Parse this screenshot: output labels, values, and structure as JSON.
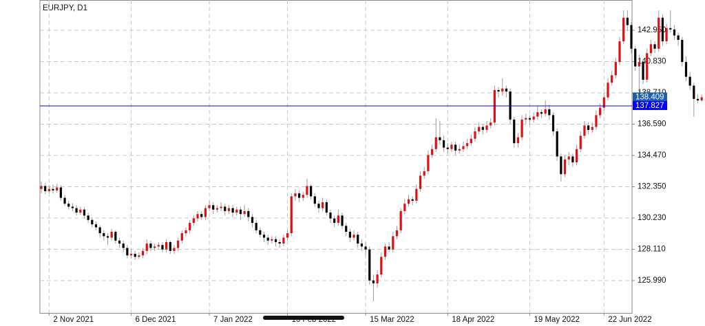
{
  "chart_data": {
    "type": "candlestick",
    "title": "EURJPY, D1",
    "categories": [
      null,
      null,
      "2 Nov 2021",
      null,
      null,
      null,
      null,
      null,
      null,
      null,
      null,
      null,
      null,
      null,
      null,
      null,
      null,
      null,
      null,
      null,
      null,
      null,
      null,
      "6 Dec 2021",
      null,
      null,
      null,
      null,
      null,
      null,
      null,
      null,
      null,
      null,
      null,
      null,
      null,
      null,
      null,
      null,
      null,
      null,
      null,
      "7 Jan 2022",
      null,
      null,
      null,
      null,
      null,
      null,
      null,
      null,
      null,
      null,
      null,
      null,
      null,
      null,
      null,
      null,
      null,
      null,
      null,
      "10 Feb 2022",
      null,
      null,
      null,
      null,
      null,
      null,
      null,
      null,
      null,
      null,
      null,
      null,
      null,
      null,
      null,
      null,
      null,
      null,
      null,
      "15 Mar 2022",
      null,
      null,
      null,
      null,
      null,
      null,
      null,
      null,
      null,
      null,
      null,
      null,
      null,
      null,
      null,
      null,
      null,
      null,
      null,
      null,
      "18 Apr 2022",
      null,
      null,
      null,
      null,
      null,
      null,
      null,
      null,
      null,
      null,
      null,
      null,
      null,
      null,
      null,
      null,
      null,
      null,
      null,
      null,
      "19 May 2022",
      null,
      null,
      null,
      null,
      null,
      null,
      null,
      null,
      null,
      null,
      null,
      null,
      null,
      null,
      null,
      null,
      null,
      null,
      "22 Jun 2022",
      null,
      null,
      null,
      null
    ],
    "ohlc": [
      [
        132.2,
        132.7,
        131.9,
        132.4
      ],
      [
        132.4,
        132.6,
        131.85,
        132.05
      ],
      [
        132.05,
        132.45,
        131.9,
        132.2
      ],
      [
        132.2,
        132.5,
        131.9,
        132.1
      ],
      [
        132.1,
        132.55,
        131.95,
        132.3
      ],
      [
        132.3,
        132.45,
        131.4,
        131.6
      ],
      [
        131.6,
        131.8,
        131.05,
        131.2
      ],
      [
        131.2,
        131.4,
        130.8,
        131.0
      ],
      [
        131.0,
        131.25,
        130.7,
        130.9
      ],
      [
        130.9,
        131.1,
        130.4,
        130.6
      ],
      [
        130.6,
        131.0,
        130.45,
        130.8
      ],
      [
        130.8,
        130.95,
        130.2,
        130.4
      ],
      [
        130.4,
        130.6,
        129.9,
        130.1
      ],
      [
        130.1,
        130.3,
        129.6,
        129.8
      ],
      [
        129.8,
        130.0,
        129.4,
        129.6
      ],
      [
        129.6,
        129.75,
        128.9,
        129.2
      ],
      [
        129.2,
        129.4,
        128.7,
        129.0
      ],
      [
        129.0,
        129.2,
        128.4,
        128.9
      ],
      [
        128.9,
        129.5,
        128.7,
        129.3
      ],
      [
        129.3,
        129.4,
        128.5,
        128.7
      ],
      [
        128.7,
        128.9,
        128.2,
        128.5
      ],
      [
        128.5,
        128.7,
        127.9,
        128.2
      ],
      [
        128.2,
        128.4,
        127.5,
        127.7
      ],
      [
        127.7,
        128.1,
        127.5,
        127.8
      ],
      [
        127.8,
        128.0,
        127.4,
        127.6
      ],
      [
        127.6,
        127.9,
        127.45,
        127.7
      ],
      [
        127.7,
        128.2,
        127.5,
        128.0
      ],
      [
        128.0,
        128.8,
        127.8,
        128.5
      ],
      [
        128.5,
        128.7,
        128.0,
        128.2
      ],
      [
        128.2,
        128.5,
        128.0,
        128.3
      ],
      [
        128.3,
        128.6,
        128.1,
        128.4
      ],
      [
        128.4,
        128.6,
        127.9,
        128.1
      ],
      [
        128.1,
        128.8,
        127.9,
        128.6
      ],
      [
        128.6,
        128.7,
        127.8,
        128.0
      ],
      [
        128.0,
        128.4,
        127.8,
        128.2
      ],
      [
        128.2,
        128.9,
        128.0,
        128.7
      ],
      [
        128.7,
        129.4,
        128.5,
        129.2
      ],
      [
        129.2,
        129.6,
        129.0,
        129.4
      ],
      [
        129.4,
        130.1,
        129.2,
        129.9
      ],
      [
        129.9,
        130.4,
        129.7,
        130.2
      ],
      [
        130.2,
        130.7,
        130.0,
        130.5
      ],
      [
        130.5,
        130.7,
        130.1,
        130.3
      ],
      [
        130.3,
        131.1,
        130.1,
        130.9
      ],
      [
        130.9,
        131.4,
        130.7,
        131.1
      ],
      [
        131.1,
        131.3,
        130.5,
        130.8
      ],
      [
        130.8,
        131.1,
        130.6,
        130.9
      ],
      [
        130.9,
        131.3,
        130.7,
        131.0
      ],
      [
        131.0,
        131.2,
        130.4,
        130.7
      ],
      [
        130.7,
        131.1,
        130.5,
        130.9
      ],
      [
        130.9,
        131.1,
        130.3,
        130.6
      ],
      [
        130.6,
        131.0,
        130.4,
        130.8
      ],
      [
        130.8,
        131.0,
        130.1,
        130.5
      ],
      [
        130.5,
        131.1,
        130.3,
        130.7
      ],
      [
        130.7,
        130.9,
        130.0,
        130.3
      ],
      [
        130.3,
        130.5,
        129.6,
        129.9
      ],
      [
        129.9,
        130.1,
        129.2,
        129.4
      ],
      [
        129.4,
        129.6,
        128.9,
        129.1
      ],
      [
        129.1,
        129.3,
        128.6,
        128.9
      ],
      [
        128.9,
        129.1,
        128.4,
        128.7
      ],
      [
        128.7,
        129.0,
        128.5,
        128.8
      ],
      [
        128.8,
        129.0,
        128.3,
        128.6
      ],
      [
        128.6,
        128.8,
        128.2,
        128.5
      ],
      [
        128.5,
        129.1,
        128.3,
        128.9
      ],
      [
        128.9,
        129.4,
        128.7,
        129.2
      ],
      [
        129.2,
        131.9,
        129.0,
        131.7
      ],
      [
        131.7,
        132.2,
        131.4,
        131.9
      ],
      [
        131.9,
        132.1,
        131.3,
        131.6
      ],
      [
        131.6,
        132.0,
        131.4,
        131.8
      ],
      [
        131.8,
        132.9,
        131.6,
        132.4
      ],
      [
        132.4,
        132.5,
        131.5,
        131.7
      ],
      [
        131.7,
        131.9,
        131.0,
        131.2
      ],
      [
        131.2,
        131.4,
        130.6,
        130.9
      ],
      [
        130.9,
        131.6,
        130.7,
        131.3
      ],
      [
        131.3,
        131.5,
        130.4,
        130.6
      ],
      [
        130.6,
        130.8,
        129.9,
        130.2
      ],
      [
        130.2,
        130.4,
        129.6,
        129.9
      ],
      [
        129.9,
        130.8,
        129.7,
        130.4
      ],
      [
        130.4,
        130.6,
        129.5,
        129.7
      ],
      [
        129.7,
        129.9,
        129.0,
        129.3
      ],
      [
        129.3,
        129.5,
        128.6,
        128.9
      ],
      [
        128.9,
        129.4,
        128.7,
        129.1
      ],
      [
        129.1,
        129.3,
        128.2,
        128.5
      ],
      [
        128.5,
        128.8,
        128.0,
        128.3
      ],
      [
        128.3,
        128.6,
        127.7,
        128.1
      ],
      [
        128.1,
        128.3,
        125.7,
        126.0
      ],
      [
        126.0,
        126.4,
        124.6,
        125.8
      ],
      [
        125.8,
        126.7,
        125.5,
        126.4
      ],
      [
        126.4,
        127.9,
        126.2,
        127.6
      ],
      [
        127.6,
        128.5,
        127.4,
        128.3
      ],
      [
        128.3,
        128.6,
        127.9,
        128.1
      ],
      [
        128.1,
        129.3,
        127.9,
        129.0
      ],
      [
        129.0,
        129.7,
        128.8,
        129.4
      ],
      [
        129.4,
        130.9,
        129.2,
        130.7
      ],
      [
        130.7,
        131.5,
        130.5,
        131.2
      ],
      [
        131.2,
        131.8,
        131.0,
        131.5
      ],
      [
        131.5,
        131.7,
        131.1,
        131.4
      ],
      [
        131.4,
        132.5,
        131.2,
        132.2
      ],
      [
        132.2,
        133.4,
        132.0,
        133.1
      ],
      [
        133.1,
        133.7,
        132.9,
        133.4
      ],
      [
        133.4,
        134.8,
        133.2,
        134.5
      ],
      [
        134.5,
        135.2,
        134.3,
        134.9
      ],
      [
        134.9,
        137.0,
        134.7,
        135.7
      ],
      [
        135.7,
        136.8,
        135.2,
        135.5
      ],
      [
        135.5,
        135.8,
        134.7,
        135.0
      ],
      [
        135.0,
        135.3,
        134.6,
        134.9
      ],
      [
        134.9,
        135.4,
        134.7,
        135.2
      ],
      [
        135.2,
        135.4,
        134.5,
        134.8
      ],
      [
        134.8,
        135.2,
        134.6,
        134.9
      ],
      [
        134.9,
        135.4,
        134.7,
        135.1
      ],
      [
        135.1,
        135.6,
        134.9,
        135.3
      ],
      [
        135.3,
        135.9,
        135.1,
        135.6
      ],
      [
        135.6,
        136.4,
        135.4,
        136.1
      ],
      [
        136.1,
        136.7,
        135.9,
        136.4
      ],
      [
        136.4,
        136.6,
        135.9,
        136.2
      ],
      [
        136.2,
        136.8,
        136.0,
        136.5
      ],
      [
        136.5,
        137.0,
        136.3,
        136.7
      ],
      [
        136.7,
        139.2,
        136.5,
        138.9
      ],
      [
        138.9,
        139.1,
        138.4,
        138.8
      ],
      [
        138.8,
        139.7,
        138.5,
        139.0
      ],
      [
        139.0,
        139.2,
        138.4,
        138.8
      ],
      [
        138.8,
        139.0,
        136.6,
        136.9
      ],
      [
        136.9,
        137.1,
        135.0,
        135.3
      ],
      [
        135.3,
        136.0,
        135.0,
        135.7
      ],
      [
        135.7,
        137.2,
        135.5,
        136.9
      ],
      [
        136.9,
        137.3,
        136.6,
        137.0
      ],
      [
        137.0,
        137.2,
        136.6,
        136.9
      ],
      [
        136.9,
        137.4,
        136.7,
        137.1
      ],
      [
        137.1,
        137.8,
        136.9,
        137.4
      ],
      [
        137.4,
        137.6,
        137.0,
        137.3
      ],
      [
        137.3,
        138.2,
        137.1,
        137.6
      ],
      [
        137.6,
        137.9,
        136.9,
        137.2
      ],
      [
        137.2,
        137.4,
        135.8,
        136.1
      ],
      [
        136.1,
        136.3,
        134.1,
        134.4
      ],
      [
        134.4,
        134.6,
        132.7,
        133.2
      ],
      [
        133.2,
        134.5,
        133.0,
        134.2
      ],
      [
        134.2,
        134.7,
        133.8,
        134.4
      ],
      [
        134.4,
        134.6,
        133.7,
        134.0
      ],
      [
        134.0,
        135.2,
        133.8,
        134.9
      ],
      [
        134.9,
        136.1,
        134.7,
        135.8
      ],
      [
        135.8,
        136.8,
        135.6,
        136.5
      ],
      [
        136.5,
        136.7,
        135.9,
        136.2
      ],
      [
        136.2,
        136.7,
        136.0,
        136.4
      ],
      [
        136.4,
        137.5,
        136.2,
        137.2
      ],
      [
        137.2,
        138.0,
        137.0,
        137.7
      ],
      [
        137.7,
        138.7,
        137.5,
        138.4
      ],
      [
        138.4,
        139.7,
        138.2,
        139.4
      ],
      [
        139.4,
        140.2,
        139.2,
        139.9
      ],
      [
        139.9,
        141.1,
        139.7,
        140.8
      ],
      [
        140.8,
        142.5,
        140.6,
        142.2
      ],
      [
        142.2,
        144.3,
        142.0,
        143.8
      ],
      [
        143.8,
        144.3,
        142.9,
        143.3
      ],
      [
        143.3,
        143.5,
        141.4,
        141.7
      ],
      [
        141.7,
        141.9,
        140.2,
        140.5
      ],
      [
        140.5,
        141.3,
        137.8,
        140.8
      ],
      [
        140.8,
        141.0,
        139.3,
        139.6
      ],
      [
        139.6,
        141.7,
        139.4,
        141.4
      ],
      [
        141.4,
        142.3,
        141.2,
        142.0
      ],
      [
        142.0,
        142.2,
        141.4,
        141.7
      ],
      [
        141.7,
        144.3,
        141.5,
        143.8
      ],
      [
        143.8,
        144.0,
        141.9,
        142.2
      ],
      [
        142.2,
        143.4,
        142.0,
        143.1
      ],
      [
        143.1,
        144.3,
        142.8,
        143.0
      ],
      [
        143.0,
        143.3,
        142.3,
        142.6
      ],
      [
        142.6,
        142.8,
        141.9,
        142.3
      ],
      [
        142.3,
        142.5,
        140.5,
        140.8
      ],
      [
        140.8,
        141.2,
        139.5,
        139.8
      ],
      [
        139.8,
        140.1,
        138.9,
        139.2
      ],
      [
        139.2,
        139.4,
        137.1,
        138.3
      ],
      [
        138.3,
        138.6,
        138.0,
        138.2
      ],
      [
        138.2,
        138.6,
        138.1,
        138.41
      ]
    ],
    "up_color": "#e01010",
    "down_color": "#000000",
    "ylim": [
      123.8,
      145.0
    ],
    "yticks": [
      {
        "value": 125.99,
        "label": "125.990"
      },
      {
        "value": 128.11,
        "label": "128.110"
      },
      {
        "value": 130.23,
        "label": "130.230"
      },
      {
        "value": 132.35,
        "label": "132.350"
      },
      {
        "value": 134.47,
        "label": "134.470"
      },
      {
        "value": 136.59,
        "label": "136.590"
      },
      {
        "value": 138.71,
        "label": "138.710"
      },
      {
        "value": 140.83,
        "label": "140.830"
      },
      {
        "value": 142.95,
        "label": "142.950"
      }
    ],
    "grid": true,
    "last_price": {
      "value": 138.409,
      "label": "138.409",
      "color": "#1f5fa8"
    },
    "hline": {
      "value": 137.827,
      "label": "137.827",
      "color": "#0000ff"
    }
  }
}
